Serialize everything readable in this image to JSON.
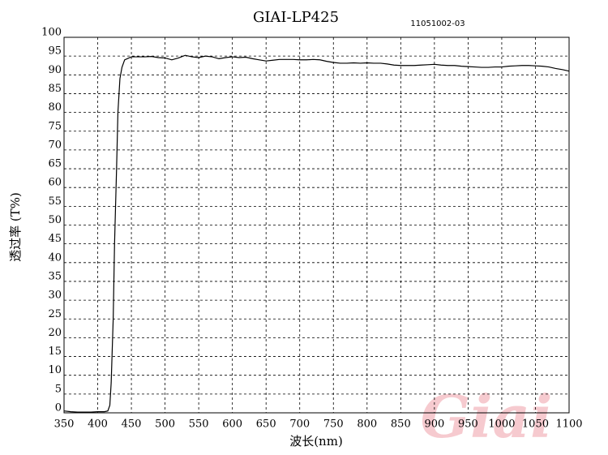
{
  "chart_data": {
    "type": "line",
    "title": "GIAI-LP425",
    "subtitle": "11051002-03",
    "x_label": "波长(nm)",
    "y_label": "透过率 (T%)",
    "watermark": "Giai",
    "x": [
      350,
      360,
      370,
      380,
      390,
      400,
      410,
      415,
      418,
      420,
      423,
      425,
      428,
      430,
      433,
      436,
      440,
      450,
      460,
      470,
      480,
      490,
      500,
      510,
      520,
      530,
      540,
      550,
      560,
      570,
      580,
      590,
      600,
      610,
      620,
      630,
      640,
      650,
      660,
      670,
      680,
      690,
      700,
      710,
      720,
      730,
      740,
      750,
      760,
      770,
      780,
      790,
      800,
      810,
      820,
      830,
      840,
      850,
      860,
      870,
      880,
      890,
      900,
      910,
      920,
      930,
      940,
      950,
      960,
      970,
      980,
      990,
      1000,
      1010,
      1020,
      1030,
      1040,
      1050,
      1060,
      1070,
      1080,
      1090,
      1100
    ],
    "series": [
      {
        "name": "GIAI-LP425",
        "color": "#000000",
        "values": [
          0.5,
          0.3,
          0.2,
          0.2,
          0.2,
          0.3,
          0.3,
          0.5,
          2,
          8,
          25,
          45,
          65,
          80,
          89,
          92,
          94,
          94.8,
          94.8,
          94.8,
          94.9,
          94.6,
          94.5,
          94,
          94.5,
          95.2,
          94.8,
          94.6,
          95,
          94.8,
          94.3,
          94.6,
          94.8,
          94.6,
          94.7,
          94.3,
          94,
          93.7,
          93.9,
          94.1,
          94.1,
          94.1,
          94,
          94,
          94.1,
          94,
          93.6,
          93.3,
          93.1,
          93.1,
          93.2,
          93.1,
          93.2,
          93.1,
          93.1,
          92.9,
          92.6,
          92.5,
          92.5,
          92.5,
          92.6,
          92.7,
          92.8,
          92.6,
          92.5,
          92.5,
          92.3,
          92.2,
          92.1,
          92,
          92,
          92.1,
          92.1,
          92.3,
          92.4,
          92.5,
          92.5,
          92.4,
          92.3,
          92.1,
          91.7,
          91.4,
          91
        ]
      }
    ],
    "xlim": [
      350,
      1100
    ],
    "ylim": [
      0,
      100
    ],
    "xticks": [
      350,
      400,
      450,
      500,
      550,
      600,
      650,
      700,
      750,
      800,
      850,
      900,
      950,
      1000,
      1050,
      1100
    ],
    "yticks": [
      0,
      5,
      10,
      15,
      20,
      25,
      30,
      35,
      40,
      45,
      50,
      55,
      60,
      65,
      70,
      75,
      80,
      85,
      90,
      95,
      100
    ],
    "grid": true
  }
}
